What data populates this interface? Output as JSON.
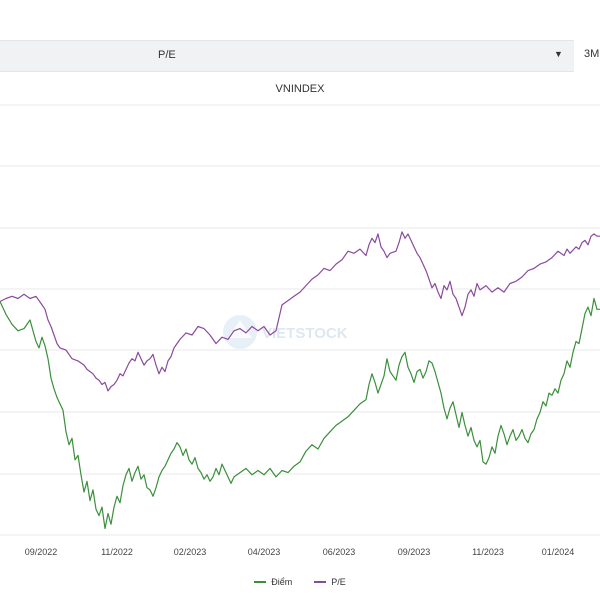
{
  "controls": {
    "metric_select": "P/E",
    "range_button": "3M"
  },
  "watermark": "VIETSTOCK",
  "colors": {
    "diem": "#3a8f3a",
    "pe": "#8a4a9c",
    "grid": "#e8e8e8"
  },
  "chart_data": {
    "type": "line",
    "title": "VNINDEX",
    "x_tick_labels": [
      "09/2022",
      "11/2022",
      "02/2023",
      "04/2023",
      "06/2023",
      "09/2023",
      "11/2023",
      "01/2024"
    ],
    "grid": true,
    "legend_position": "bottom-center",
    "series": [
      {
        "name": "Điểm",
        "color": "#3a8f3a",
        "points": [
          [
            0.0,
            54.3
          ],
          [
            0.01,
            51.3
          ],
          [
            0.02,
            49.0
          ],
          [
            0.03,
            47.5
          ],
          [
            0.04,
            48.0
          ],
          [
            0.05,
            50.0
          ],
          [
            0.055,
            47.5
          ],
          [
            0.06,
            45.0
          ],
          [
            0.065,
            43.5
          ],
          [
            0.07,
            46.0
          ],
          [
            0.075,
            44.0
          ],
          [
            0.08,
            41.0
          ],
          [
            0.085,
            36.5
          ],
          [
            0.09,
            34.0
          ],
          [
            0.095,
            32.0
          ],
          [
            0.1,
            30.5
          ],
          [
            0.105,
            29.0
          ],
          [
            0.11,
            24.0
          ],
          [
            0.115,
            21.0
          ],
          [
            0.12,
            22.5
          ],
          [
            0.125,
            17.5
          ],
          [
            0.13,
            18.5
          ],
          [
            0.135,
            14.0
          ],
          [
            0.14,
            10.0
          ],
          [
            0.145,
            12.5
          ],
          [
            0.15,
            8.0
          ],
          [
            0.155,
            10.5
          ],
          [
            0.16,
            6.0
          ],
          [
            0.165,
            4.5
          ],
          [
            0.17,
            6.5
          ],
          [
            0.175,
            1.5
          ],
          [
            0.18,
            5.0
          ],
          [
            0.185,
            2.5
          ],
          [
            0.19,
            6.5
          ],
          [
            0.195,
            9.0
          ],
          [
            0.2,
            7.5
          ],
          [
            0.205,
            11.5
          ],
          [
            0.21,
            14.0
          ],
          [
            0.215,
            15.5
          ],
          [
            0.22,
            12.5
          ],
          [
            0.225,
            14.5
          ],
          [
            0.23,
            16.0
          ],
          [
            0.235,
            13.0
          ],
          [
            0.24,
            14.0
          ],
          [
            0.245,
            11.0
          ],
          [
            0.25,
            10.5
          ],
          [
            0.255,
            9.0
          ],
          [
            0.26,
            11.0
          ],
          [
            0.265,
            13.5
          ],
          [
            0.27,
            15.0
          ],
          [
            0.275,
            16.0
          ],
          [
            0.28,
            17.5
          ],
          [
            0.285,
            19.0
          ],
          [
            0.29,
            20.0
          ],
          [
            0.295,
            21.5
          ],
          [
            0.3,
            20.5
          ],
          [
            0.305,
            18.5
          ],
          [
            0.31,
            20.0
          ],
          [
            0.315,
            17.5
          ],
          [
            0.32,
            16.5
          ],
          [
            0.325,
            18.0
          ],
          [
            0.33,
            15.5
          ],
          [
            0.335,
            14.5
          ],
          [
            0.34,
            13.0
          ],
          [
            0.345,
            14.0
          ],
          [
            0.35,
            12.5
          ],
          [
            0.355,
            13.5
          ],
          [
            0.36,
            15.5
          ],
          [
            0.365,
            14.0
          ],
          [
            0.37,
            16.5
          ],
          [
            0.375,
            15.0
          ],
          [
            0.38,
            13.5
          ],
          [
            0.385,
            12.0
          ],
          [
            0.39,
            13.5
          ],
          [
            0.4,
            14.5
          ],
          [
            0.41,
            15.5
          ],
          [
            0.42,
            14.0
          ],
          [
            0.43,
            15.0
          ],
          [
            0.44,
            14.0
          ],
          [
            0.45,
            15.5
          ],
          [
            0.46,
            13.5
          ],
          [
            0.47,
            15.0
          ],
          [
            0.48,
            14.5
          ],
          [
            0.49,
            16.0
          ],
          [
            0.5,
            17.0
          ],
          [
            0.51,
            19.5
          ],
          [
            0.52,
            21.0
          ],
          [
            0.53,
            20.0
          ],
          [
            0.54,
            22.5
          ],
          [
            0.55,
            24.0
          ],
          [
            0.56,
            25.5
          ],
          [
            0.57,
            26.5
          ],
          [
            0.58,
            27.5
          ],
          [
            0.59,
            29.0
          ],
          [
            0.6,
            30.5
          ],
          [
            0.61,
            31.5
          ],
          [
            0.615,
            35.0
          ],
          [
            0.62,
            37.5
          ],
          [
            0.625,
            35.5
          ],
          [
            0.63,
            33.0
          ],
          [
            0.64,
            37.0
          ],
          [
            0.645,
            41.0
          ],
          [
            0.65,
            38.0
          ],
          [
            0.66,
            36.0
          ],
          [
            0.665,
            39.5
          ],
          [
            0.67,
            41.5
          ],
          [
            0.675,
            42.5
          ],
          [
            0.68,
            39.0
          ],
          [
            0.685,
            37.5
          ],
          [
            0.69,
            35.5
          ],
          [
            0.695,
            38.0
          ],
          [
            0.7,
            38.5
          ],
          [
            0.705,
            36.5
          ],
          [
            0.71,
            38.0
          ],
          [
            0.715,
            40.5
          ],
          [
            0.72,
            40.0
          ],
          [
            0.725,
            38.0
          ],
          [
            0.73,
            35.5
          ],
          [
            0.735,
            33.0
          ],
          [
            0.74,
            29.5
          ],
          [
            0.745,
            27.0
          ],
          [
            0.75,
            29.5
          ],
          [
            0.755,
            31.0
          ],
          [
            0.76,
            28.0
          ],
          [
            0.765,
            25.0
          ],
          [
            0.77,
            28.5
          ],
          [
            0.775,
            25.5
          ],
          [
            0.78,
            23.0
          ],
          [
            0.785,
            25.0
          ],
          [
            0.79,
            22.0
          ],
          [
            0.795,
            20.5
          ],
          [
            0.8,
            22.0
          ],
          [
            0.805,
            17.0
          ],
          [
            0.81,
            16.5
          ],
          [
            0.815,
            18.0
          ],
          [
            0.82,
            20.5
          ],
          [
            0.825,
            19.0
          ],
          [
            0.83,
            23.0
          ],
          [
            0.835,
            25.5
          ],
          [
            0.84,
            23.5
          ],
          [
            0.845,
            21.0
          ],
          [
            0.85,
            23.0
          ],
          [
            0.855,
            24.5
          ],
          [
            0.86,
            22.0
          ],
          [
            0.865,
            23.0
          ],
          [
            0.87,
            24.5
          ],
          [
            0.875,
            22.5
          ],
          [
            0.88,
            21.5
          ],
          [
            0.885,
            23.5
          ],
          [
            0.89,
            24.5
          ],
          [
            0.895,
            27.0
          ],
          [
            0.9,
            28.5
          ],
          [
            0.905,
            31.0
          ],
          [
            0.91,
            30.0
          ],
          [
            0.915,
            33.0
          ],
          [
            0.92,
            32.5
          ],
          [
            0.925,
            34.0
          ],
          [
            0.93,
            33.0
          ],
          [
            0.935,
            36.0
          ],
          [
            0.94,
            37.5
          ],
          [
            0.945,
            40.5
          ],
          [
            0.95,
            39.0
          ],
          [
            0.955,
            42.5
          ],
          [
            0.96,
            45.0
          ],
          [
            0.965,
            44.5
          ],
          [
            0.97,
            48.0
          ],
          [
            0.975,
            51.5
          ],
          [
            0.98,
            53.0
          ],
          [
            0.985,
            51.0
          ],
          [
            0.99,
            55.0
          ],
          [
            0.995,
            52.5
          ],
          [
            1.0,
            52.5
          ]
        ]
      },
      {
        "name": "P/E",
        "color": "#8a4a9c",
        "points": [
          [
            0.0,
            54.3
          ],
          [
            0.01,
            55.0
          ],
          [
            0.02,
            55.5
          ],
          [
            0.03,
            55.0
          ],
          [
            0.04,
            56.0
          ],
          [
            0.05,
            55.0
          ],
          [
            0.06,
            55.5
          ],
          [
            0.07,
            53.5
          ],
          [
            0.075,
            52.5
          ],
          [
            0.08,
            50.0
          ],
          [
            0.085,
            48.5
          ],
          [
            0.09,
            46.5
          ],
          [
            0.095,
            44.5
          ],
          [
            0.1,
            43.5
          ],
          [
            0.11,
            43.0
          ],
          [
            0.12,
            41.0
          ],
          [
            0.13,
            40.5
          ],
          [
            0.14,
            39.5
          ],
          [
            0.145,
            38.5
          ],
          [
            0.15,
            38.0
          ],
          [
            0.155,
            37.5
          ],
          [
            0.16,
            36.5
          ],
          [
            0.165,
            36.0
          ],
          [
            0.17,
            35.0
          ],
          [
            0.175,
            35.5
          ],
          [
            0.18,
            33.5
          ],
          [
            0.185,
            34.5
          ],
          [
            0.19,
            35.0
          ],
          [
            0.195,
            36.0
          ],
          [
            0.2,
            37.5
          ],
          [
            0.205,
            37.0
          ],
          [
            0.21,
            38.5
          ],
          [
            0.215,
            40.0
          ],
          [
            0.22,
            41.0
          ],
          [
            0.225,
            40.5
          ],
          [
            0.23,
            42.5
          ],
          [
            0.235,
            41.0
          ],
          [
            0.24,
            39.5
          ],
          [
            0.245,
            40.5
          ],
          [
            0.25,
            41.0
          ],
          [
            0.255,
            42.0
          ],
          [
            0.26,
            39.5
          ],
          [
            0.265,
            37.5
          ],
          [
            0.27,
            39.0
          ],
          [
            0.275,
            38.0
          ],
          [
            0.28,
            40.5
          ],
          [
            0.285,
            41.5
          ],
          [
            0.29,
            43.5
          ],
          [
            0.295,
            44.5
          ],
          [
            0.3,
            45.5
          ],
          [
            0.31,
            47.0
          ],
          [
            0.32,
            46.5
          ],
          [
            0.33,
            48.5
          ],
          [
            0.34,
            48.0
          ],
          [
            0.35,
            46.5
          ],
          [
            0.36,
            44.5
          ],
          [
            0.37,
            46.0
          ],
          [
            0.38,
            45.5
          ],
          [
            0.39,
            47.5
          ],
          [
            0.4,
            48.0
          ],
          [
            0.41,
            47.0
          ],
          [
            0.42,
            48.5
          ],
          [
            0.43,
            47.5
          ],
          [
            0.44,
            48.5
          ],
          [
            0.45,
            46.5
          ],
          [
            0.46,
            47.5
          ],
          [
            0.47,
            53.5
          ],
          [
            0.48,
            54.5
          ],
          [
            0.49,
            55.5
          ],
          [
            0.5,
            56.5
          ],
          [
            0.51,
            58.0
          ],
          [
            0.52,
            59.5
          ],
          [
            0.53,
            60.5
          ],
          [
            0.54,
            62.0
          ],
          [
            0.55,
            61.5
          ],
          [
            0.56,
            63.0
          ],
          [
            0.57,
            64.0
          ],
          [
            0.58,
            66.0
          ],
          [
            0.59,
            65.5
          ],
          [
            0.6,
            66.5
          ],
          [
            0.61,
            65.0
          ],
          [
            0.615,
            67.5
          ],
          [
            0.62,
            69.0
          ],
          [
            0.625,
            68.0
          ],
          [
            0.63,
            70.0
          ],
          [
            0.635,
            67.0
          ],
          [
            0.64,
            66.0
          ],
          [
            0.645,
            64.5
          ],
          [
            0.65,
            65.5
          ],
          [
            0.66,
            66.0
          ],
          [
            0.665,
            68.0
          ],
          [
            0.67,
            70.5
          ],
          [
            0.675,
            69.0
          ],
          [
            0.68,
            70.0
          ],
          [
            0.685,
            68.5
          ],
          [
            0.69,
            67.0
          ],
          [
            0.695,
            65.5
          ],
          [
            0.7,
            64.5
          ],
          [
            0.705,
            63.0
          ],
          [
            0.71,
            61.5
          ],
          [
            0.715,
            59.5
          ],
          [
            0.72,
            57.5
          ],
          [
            0.725,
            58.5
          ],
          [
            0.73,
            56.5
          ],
          [
            0.735,
            55.0
          ],
          [
            0.74,
            58.0
          ],
          [
            0.745,
            57.0
          ],
          [
            0.75,
            59.0
          ],
          [
            0.755,
            56.0
          ],
          [
            0.76,
            55.0
          ],
          [
            0.765,
            53.0
          ],
          [
            0.77,
            51.0
          ],
          [
            0.775,
            53.0
          ],
          [
            0.78,
            56.0
          ],
          [
            0.785,
            57.0
          ],
          [
            0.79,
            55.5
          ],
          [
            0.795,
            58.5
          ],
          [
            0.8,
            57.0
          ],
          [
            0.81,
            58.0
          ],
          [
            0.82,
            56.5
          ],
          [
            0.83,
            57.5
          ],
          [
            0.84,
            56.5
          ],
          [
            0.85,
            58.5
          ],
          [
            0.86,
            59.0
          ],
          [
            0.87,
            60.0
          ],
          [
            0.88,
            61.5
          ],
          [
            0.89,
            62.0
          ],
          [
            0.9,
            63.0
          ],
          [
            0.91,
            63.5
          ],
          [
            0.92,
            64.5
          ],
          [
            0.93,
            66.0
          ],
          [
            0.94,
            65.0
          ],
          [
            0.945,
            66.5
          ],
          [
            0.95,
            65.5
          ],
          [
            0.96,
            67.0
          ],
          [
            0.965,
            66.5
          ],
          [
            0.97,
            68.0
          ],
          [
            0.975,
            68.5
          ],
          [
            0.98,
            67.5
          ],
          [
            0.985,
            69.5
          ],
          [
            0.99,
            70.0
          ],
          [
            0.995,
            69.5
          ],
          [
            1.0,
            69.5
          ]
        ]
      }
    ]
  }
}
